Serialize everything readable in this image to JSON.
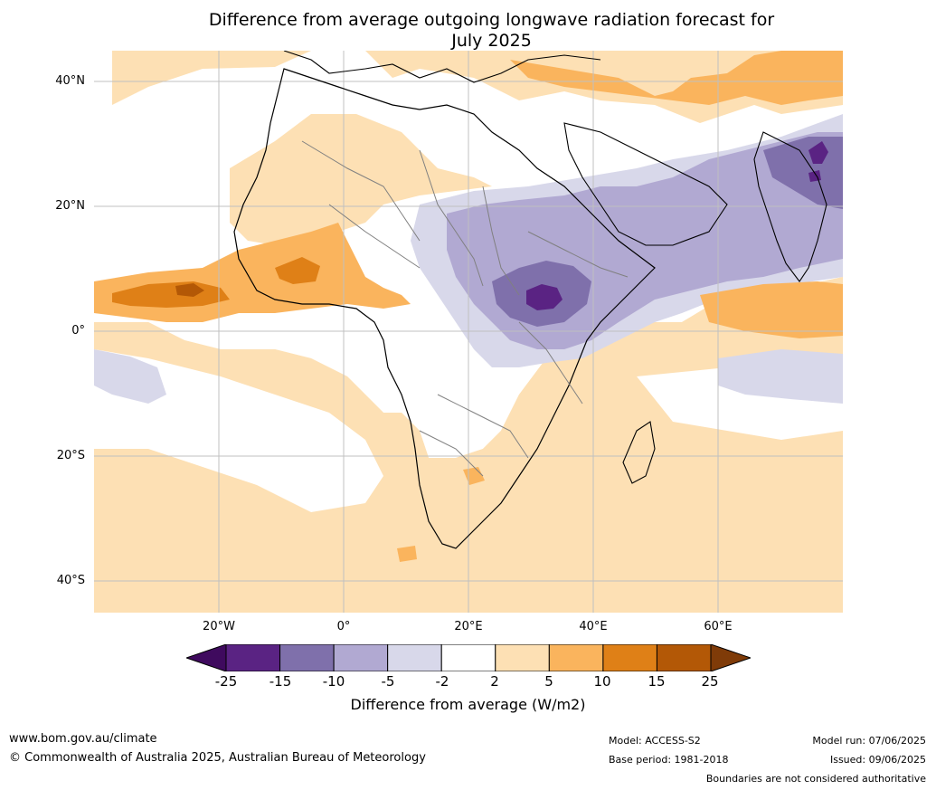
{
  "title_line1": "Difference from average outgoing longwave radiation forecast for",
  "title_line2": "July 2025",
  "map": {
    "lat_labels": [
      "40°N",
      "20°N",
      "0°",
      "20°S",
      "40°S"
    ],
    "lon_labels": [
      "20°W",
      "0°",
      "20°E",
      "40°E",
      "60°E"
    ],
    "extent": {
      "lon_min": -39,
      "lon_max": 81,
      "lat_min": -45,
      "lat_max": 45
    },
    "grid": true
  },
  "colorbar": {
    "ticks": [
      "-25",
      "-15",
      "-10",
      "-5",
      "-2",
      "2",
      "5",
      "10",
      "15",
      "25"
    ],
    "colors": [
      "#3f0a5e",
      "#5a2383",
      "#7f70ab",
      "#b1a9d2",
      "#d8d8ea",
      "#ffffff",
      "#fde0b4",
      "#fab45d",
      "#df8017",
      "#b35806",
      "#7f3b08"
    ],
    "label": "Difference from average (W/m2)"
  },
  "footer": {
    "website": "www.bom.gov.au/climate",
    "copyright": "© Commonwealth of Australia 2025, Australian Bureau of Meteorology",
    "model": "Model: ACCESS-S2",
    "base_period": "Base period: 1981-2018",
    "model_run": "Model run: 07/06/2025",
    "issued": "Issued: 09/06/2025",
    "disclaimer": "Boundaries are not considered authoritative"
  }
}
